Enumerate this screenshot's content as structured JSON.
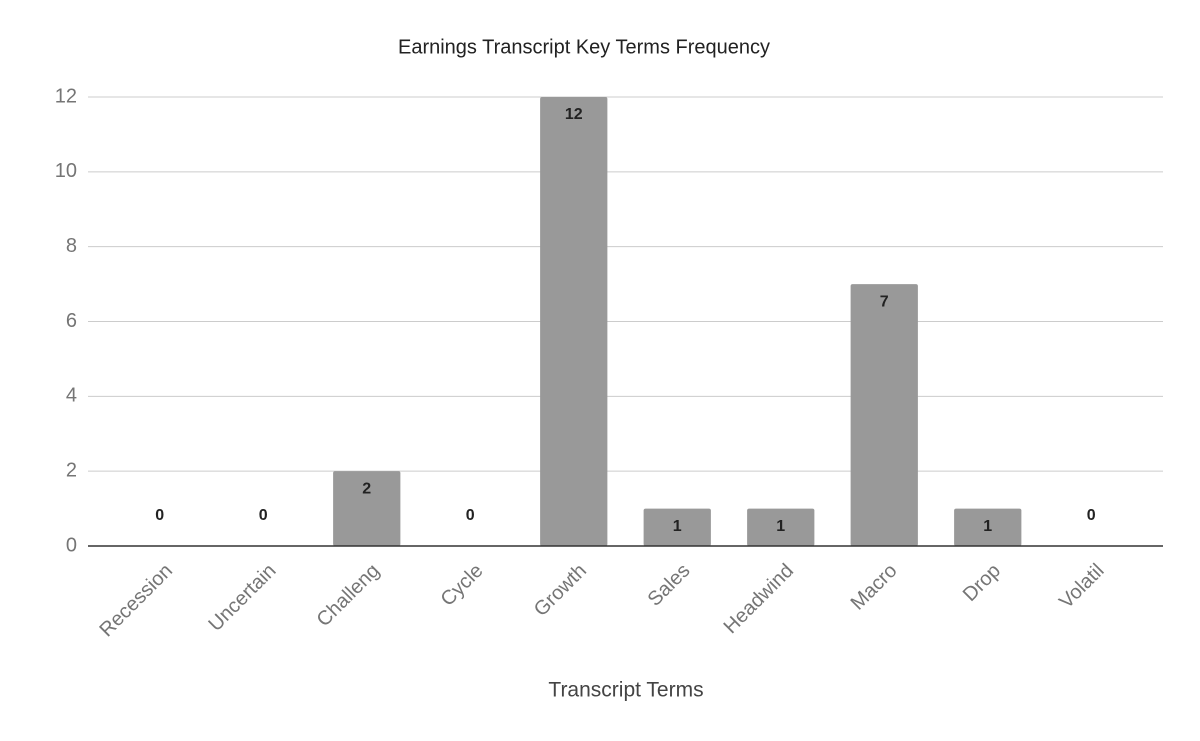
{
  "chart_data": {
    "type": "bar",
    "title": "Earnings Transcript Key Terms Frequency",
    "x_label": "Transcript Terms",
    "categories": [
      "Recession",
      "Uncertain",
      "Challeng",
      "Cycle",
      "Growth",
      "Sales",
      "Headwind",
      "Macro",
      "Drop",
      "Volatil"
    ],
    "values": [
      0,
      0,
      2,
      0,
      12,
      1,
      1,
      7,
      1,
      0
    ],
    "color": "#999999",
    "ylim": [
      0,
      12
    ],
    "yticks": [
      0,
      2,
      4,
      6,
      8,
      10,
      12
    ],
    "grid": true
  }
}
